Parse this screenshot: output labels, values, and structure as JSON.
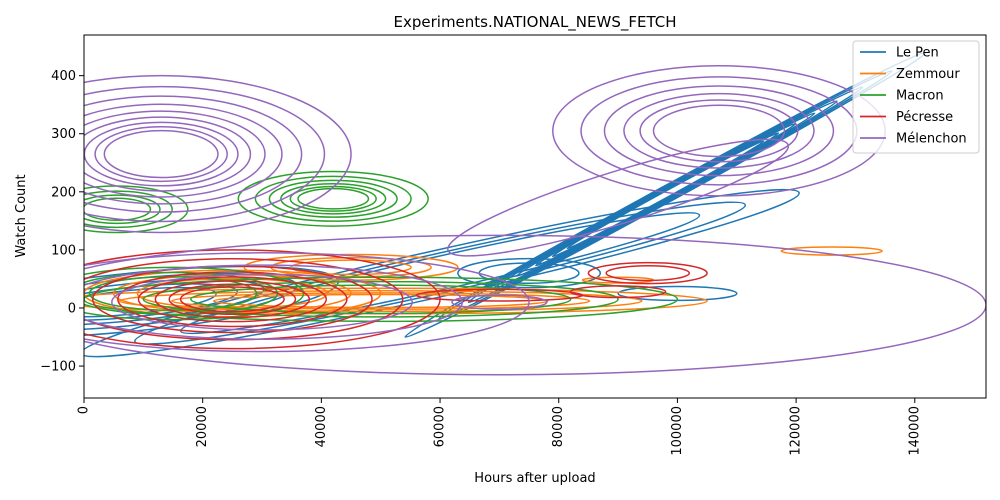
{
  "chart_data": {
    "type": "kde-contour",
    "title": "Experiments.NATIONAL_NEWS_FETCH",
    "xlabel": "Hours after upload",
    "ylabel": "Watch Count",
    "xlim": [
      0,
      152000
    ],
    "ylim": [
      -155,
      470
    ],
    "xticks": [
      0,
      20000,
      40000,
      60000,
      80000,
      100000,
      120000,
      140000
    ],
    "yticks": [
      -100,
      0,
      100,
      200,
      300,
      400
    ],
    "grid": false,
    "legend_position": "top-right",
    "series": [
      {
        "name": "Le Pen",
        "color": "#1f77b4",
        "contours": [
          {
            "cx": 98000,
            "cy": 195,
            "rx": 50000,
            "ry": 14,
            "angle": 0.5,
            "n": 8,
            "step": 0.87
          },
          {
            "cx": 8000,
            "cy": 10,
            "rx": 35000,
            "ry": 50,
            "angle": 0.1,
            "n": 5,
            "step": 0.8
          },
          {
            "cx": 60000,
            "cy": 60,
            "rx": 62000,
            "ry": 40,
            "angle": 0.22,
            "n": 3,
            "step": 0.85
          },
          {
            "cx": 75000,
            "cy": 60,
            "rx": 12000,
            "ry": 25,
            "angle": 0,
            "n": 2,
            "step": 0.7
          },
          {
            "cx": 100000,
            "cy": 25,
            "rx": 10000,
            "ry": 12,
            "angle": 0,
            "n": 1,
            "step": 1
          }
        ]
      },
      {
        "name": "Zemmour",
        "color": "#ff7f0e",
        "contours": [
          {
            "cx": 126000,
            "cy": 98,
            "rx": 8500,
            "ry": 7,
            "angle": 0,
            "n": 1,
            "step": 1
          },
          {
            "cx": 90000,
            "cy": 48,
            "rx": 6000,
            "ry": 5,
            "angle": 0,
            "n": 1,
            "step": 1
          },
          {
            "cx": 45000,
            "cy": 70,
            "rx": 18000,
            "ry": 22,
            "angle": 0,
            "n": 3,
            "step": 0.75
          },
          {
            "cx": 50000,
            "cy": 12,
            "rx": 55000,
            "ry": 22,
            "angle": 0,
            "n": 4,
            "step": 0.8
          },
          {
            "cx": 25000,
            "cy": 25,
            "rx": 25000,
            "ry": 40,
            "angle": 0,
            "n": 3,
            "step": 0.8
          }
        ]
      },
      {
        "name": "Macron",
        "color": "#2ca02c",
        "contours": [
          {
            "cx": 42000,
            "cy": 188,
            "rx": 16000,
            "ry": 47,
            "angle": 0,
            "n": 6,
            "step": 0.82
          },
          {
            "cx": 5500,
            "cy": 170,
            "rx": 12000,
            "ry": 40,
            "angle": 0,
            "n": 4,
            "step": 0.78
          },
          {
            "cx": 50000,
            "cy": 15,
            "rx": 50000,
            "ry": 38,
            "angle": 0,
            "n": 3,
            "step": 0.8
          },
          {
            "cx": 15000,
            "cy": 25,
            "rx": 22000,
            "ry": 45,
            "angle": 0,
            "n": 3,
            "step": 0.8
          }
        ]
      },
      {
        "name": "Pécresse",
        "color": "#d62728",
        "contours": [
          {
            "cx": 25000,
            "cy": 15,
            "rx": 35000,
            "ry": 85,
            "angle": 0,
            "n": 8,
            "step": 0.82
          },
          {
            "cx": 95000,
            "cy": 60,
            "rx": 10000,
            "ry": 18,
            "angle": 0,
            "n": 2,
            "step": 0.7
          },
          {
            "cx": 90000,
            "cy": 28,
            "rx": 8000,
            "ry": 10,
            "angle": 0,
            "n": 1,
            "step": 1
          },
          {
            "cx": 70000,
            "cy": 22,
            "rx": 14000,
            "ry": 10,
            "angle": 0,
            "n": 1,
            "step": 1
          }
        ]
      },
      {
        "name": "Mélenchon",
        "color": "#9467bd",
        "contours": [
          {
            "cx": 13000,
            "cy": 265,
            "rx": 32000,
            "ry": 135,
            "angle": 0,
            "n": 9,
            "step": 0.86
          },
          {
            "cx": 107000,
            "cy": 305,
            "rx": 28000,
            "ry": 112,
            "angle": 0,
            "n": 6,
            "step": 0.83
          },
          {
            "cx": 70000,
            "cy": 5,
            "rx": 82000,
            "ry": 120,
            "angle": 0,
            "n": 1,
            "step": 1
          },
          {
            "cx": 30000,
            "cy": 10,
            "rx": 45000,
            "ry": 85,
            "angle": 0,
            "n": 3,
            "step": 0.75
          },
          {
            "cx": 70000,
            "cy": 10,
            "rx": 8000,
            "ry": 12,
            "angle": 0,
            "n": 1,
            "step": 1
          },
          {
            "cx": 90000,
            "cy": 190,
            "rx": 30000,
            "ry": 45,
            "angle": 0.3,
            "n": 1,
            "step": 1
          }
        ]
      }
    ]
  }
}
